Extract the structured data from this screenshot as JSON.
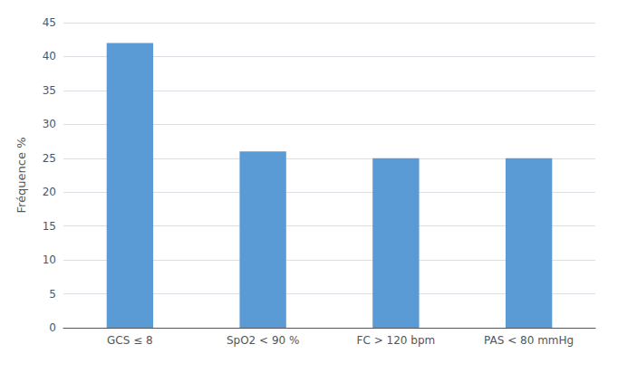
{
  "chart_data": {
    "type": "bar",
    "categories": [
      "GCS ≤ 8",
      "SpO2 < 90 %",
      "FC > 120 bpm",
      "PAS < 80 mmHg"
    ],
    "values": [
      42,
      26,
      25,
      25
    ],
    "color": "#5B9BD5",
    "ylabel": "Fréquence %",
    "ylim": [
      0,
      45
    ],
    "yticks": [
      0,
      5,
      10,
      15,
      20,
      25,
      30,
      35,
      40,
      45
    ],
    "grid": true
  }
}
